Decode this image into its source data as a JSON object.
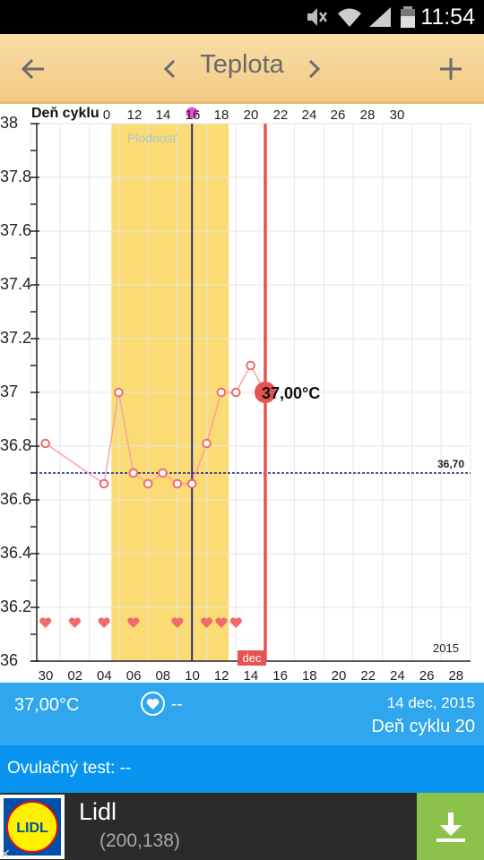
{
  "status_bar": {
    "time": "11:54",
    "icons": [
      "mute-icon",
      "wifi-icon",
      "signal-icon",
      "battery-icon"
    ]
  },
  "app_bar": {
    "title": "Teplota",
    "back_icon": "arrow-left-icon",
    "prev_icon": "chevron-left-icon",
    "next_icon": "chevron-right-icon",
    "add_icon": "plus-icon"
  },
  "chart": {
    "cycle_axis_label": "Deň cyklu",
    "fertility_label": "Plodnosť",
    "reference_label": "36,70",
    "selected_label": "37,00°C",
    "year_label": "2015",
    "month_badge": "dec",
    "colors": {
      "fertile": "#fbdb74",
      "line": "#fba3a3",
      "marker": "#f26b6b",
      "selected": "#e55353",
      "reference": "#1a1a8c",
      "ovulation": "#2a2a8a"
    }
  },
  "chart_data": {
    "type": "line",
    "title": "",
    "xlabel": "Deň cyklu",
    "ylabel": "",
    "ylim": [
      36,
      38
    ],
    "y_ticks": [
      "38",
      "37.8",
      "37.6",
      "37.4",
      "37.2",
      "37",
      "36.8",
      "36.6",
      "36.4",
      "36.2",
      "36"
    ],
    "cycle_days": [
      "0",
      "12",
      "14",
      "16",
      "18",
      "20",
      "22",
      "24",
      "26",
      "28",
      "30"
    ],
    "dates": [
      "30",
      "02",
      "04",
      "06",
      "08",
      "10",
      "12",
      "14",
      "16",
      "18",
      "20",
      "22",
      "24",
      "26",
      "28"
    ],
    "grid": true,
    "fertile_window": {
      "from": "04 dec",
      "to": "11 dec"
    },
    "ovulation_day": "09 dec",
    "reference_temperature": 36.7,
    "series": [
      {
        "values": [
          {
            "date": "29 nov",
            "temp": 36.81
          },
          {
            "date": "03 dec",
            "temp": 36.66
          },
          {
            "date": "04 dec",
            "temp": 37.0
          },
          {
            "date": "05 dec",
            "temp": 36.7
          },
          {
            "date": "06 dec",
            "temp": 36.66
          },
          {
            "date": "07 dec",
            "temp": 36.7
          },
          {
            "date": "08 dec",
            "temp": 36.66
          },
          {
            "date": "09 dec",
            "temp": 36.66
          },
          {
            "date": "10 dec",
            "temp": 36.81
          },
          {
            "date": "11 dec",
            "temp": 37.0
          },
          {
            "date": "12 dec",
            "temp": 37.0
          },
          {
            "date": "13 dec",
            "temp": 37.1
          },
          {
            "date": "14 dec",
            "temp": 37.0
          }
        ]
      }
    ],
    "intercourse_days": [
      "29 nov",
      "01 dec",
      "03 dec",
      "05 dec",
      "08 dec",
      "10 dec",
      "11 dec",
      "12 dec"
    ],
    "selected_day": "14 dec"
  },
  "info": {
    "temperature": "37,00°C",
    "intercourse_value": "--",
    "date": "14 dec, 2015",
    "cycle_day": "Deň cyklu 20"
  },
  "ovulation": {
    "label": "Ovulačný test: --"
  },
  "ad": {
    "name": "Lidl",
    "subtitle": "(200,138)",
    "logo_text": "LIDL",
    "close_text": "✕"
  }
}
